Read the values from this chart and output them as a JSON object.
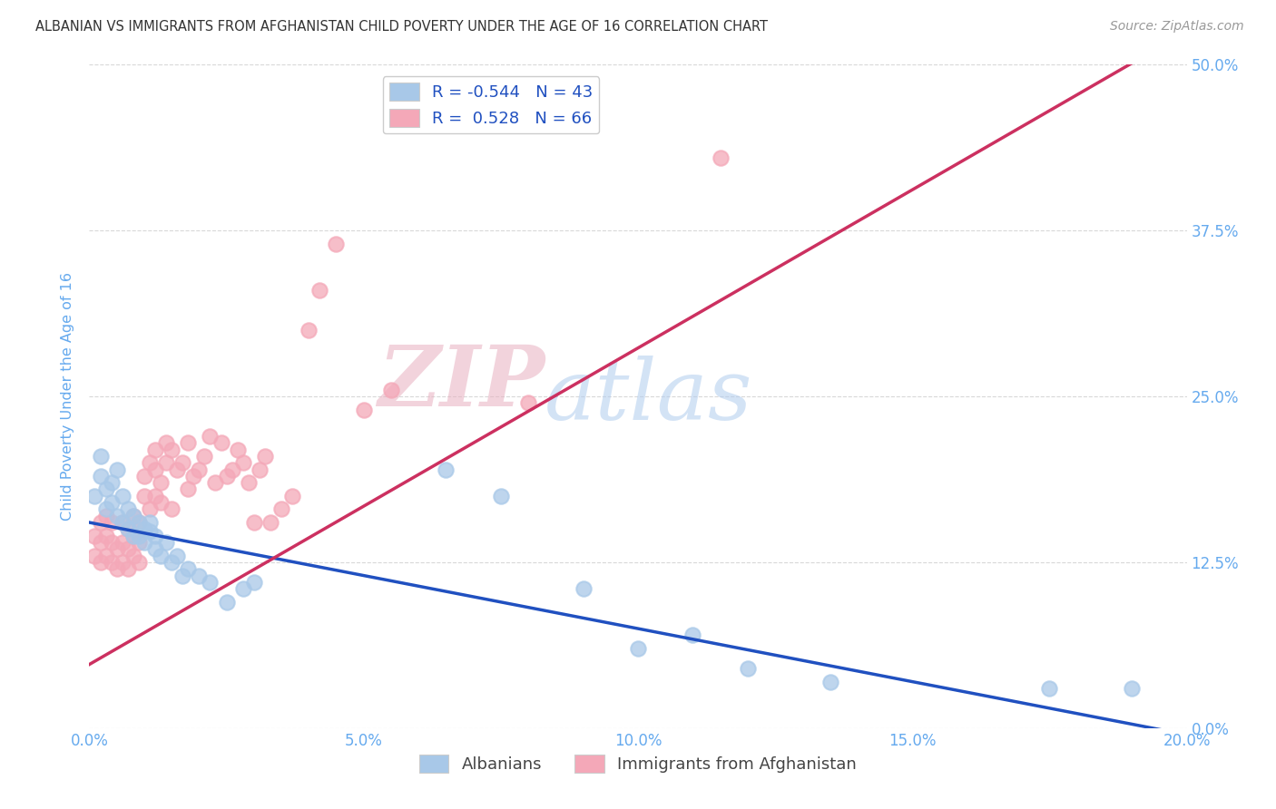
{
  "title": "ALBANIAN VS IMMIGRANTS FROM AFGHANISTAN CHILD POVERTY UNDER THE AGE OF 16 CORRELATION CHART",
  "source": "Source: ZipAtlas.com",
  "ylabel": "Child Poverty Under the Age of 16",
  "legend_labels": [
    "Albanians",
    "Immigrants from Afghanistan"
  ],
  "blue_R": -0.544,
  "blue_N": 43,
  "pink_R": 0.528,
  "pink_N": 66,
  "blue_color": "#a8c8e8",
  "pink_color": "#f4a8b8",
  "blue_line_color": "#2050c0",
  "pink_line_color": "#cc3060",
  "watermark_zip": "ZIP",
  "watermark_atlas": "atlas",
  "background_color": "#ffffff",
  "grid_color": "#d8d8d8",
  "title_color": "#333333",
  "source_color": "#999999",
  "axis_label_color": "#66aaee",
  "tick_label_color": "#66aaee",
  "xlim": [
    0.0,
    0.2
  ],
  "ylim": [
    0.0,
    0.5
  ],
  "xtick_vals": [
    0.0,
    0.05,
    0.1,
    0.15,
    0.2
  ],
  "ytick_vals": [
    0.0,
    0.125,
    0.25,
    0.375,
    0.5
  ],
  "xtick_labels": [
    "0.0%",
    "5.0%",
    "10.0%",
    "15.0%",
    "20.0%"
  ],
  "ytick_labels": [
    "0.0%",
    "12.5%",
    "25.0%",
    "37.5%",
    "50.0%"
  ],
  "blue_scatter_x": [
    0.001,
    0.002,
    0.002,
    0.003,
    0.003,
    0.004,
    0.004,
    0.005,
    0.005,
    0.006,
    0.006,
    0.007,
    0.007,
    0.008,
    0.008,
    0.009,
    0.009,
    0.01,
    0.01,
    0.011,
    0.011,
    0.012,
    0.012,
    0.013,
    0.014,
    0.015,
    0.016,
    0.017,
    0.018,
    0.02,
    0.022,
    0.025,
    0.028,
    0.03,
    0.065,
    0.075,
    0.09,
    0.1,
    0.11,
    0.12,
    0.135,
    0.175,
    0.19
  ],
  "blue_scatter_y": [
    0.175,
    0.19,
    0.205,
    0.165,
    0.18,
    0.17,
    0.185,
    0.16,
    0.195,
    0.155,
    0.175,
    0.15,
    0.165,
    0.145,
    0.16,
    0.155,
    0.145,
    0.15,
    0.14,
    0.148,
    0.155,
    0.135,
    0.145,
    0.13,
    0.14,
    0.125,
    0.13,
    0.115,
    0.12,
    0.115,
    0.11,
    0.095,
    0.105,
    0.11,
    0.195,
    0.175,
    0.105,
    0.06,
    0.07,
    0.045,
    0.035,
    0.03,
    0.03
  ],
  "pink_scatter_x": [
    0.001,
    0.001,
    0.002,
    0.002,
    0.002,
    0.003,
    0.003,
    0.003,
    0.004,
    0.004,
    0.004,
    0.005,
    0.005,
    0.006,
    0.006,
    0.006,
    0.007,
    0.007,
    0.007,
    0.008,
    0.008,
    0.008,
    0.009,
    0.009,
    0.009,
    0.01,
    0.01,
    0.011,
    0.011,
    0.012,
    0.012,
    0.012,
    0.013,
    0.013,
    0.014,
    0.014,
    0.015,
    0.015,
    0.016,
    0.017,
    0.018,
    0.018,
    0.019,
    0.02,
    0.021,
    0.022,
    0.023,
    0.024,
    0.025,
    0.026,
    0.027,
    0.028,
    0.029,
    0.03,
    0.031,
    0.032,
    0.033,
    0.035,
    0.037,
    0.04,
    0.042,
    0.045,
    0.05,
    0.055,
    0.08,
    0.115
  ],
  "pink_scatter_y": [
    0.13,
    0.145,
    0.125,
    0.14,
    0.155,
    0.13,
    0.145,
    0.16,
    0.125,
    0.14,
    0.155,
    0.12,
    0.135,
    0.125,
    0.14,
    0.155,
    0.12,
    0.135,
    0.15,
    0.13,
    0.145,
    0.16,
    0.125,
    0.14,
    0.155,
    0.175,
    0.19,
    0.165,
    0.2,
    0.175,
    0.195,
    0.21,
    0.17,
    0.185,
    0.2,
    0.215,
    0.165,
    0.21,
    0.195,
    0.2,
    0.18,
    0.215,
    0.19,
    0.195,
    0.205,
    0.22,
    0.185,
    0.215,
    0.19,
    0.195,
    0.21,
    0.2,
    0.185,
    0.155,
    0.195,
    0.205,
    0.155,
    0.165,
    0.175,
    0.3,
    0.33,
    0.365,
    0.24,
    0.255,
    0.245,
    0.43
  ]
}
